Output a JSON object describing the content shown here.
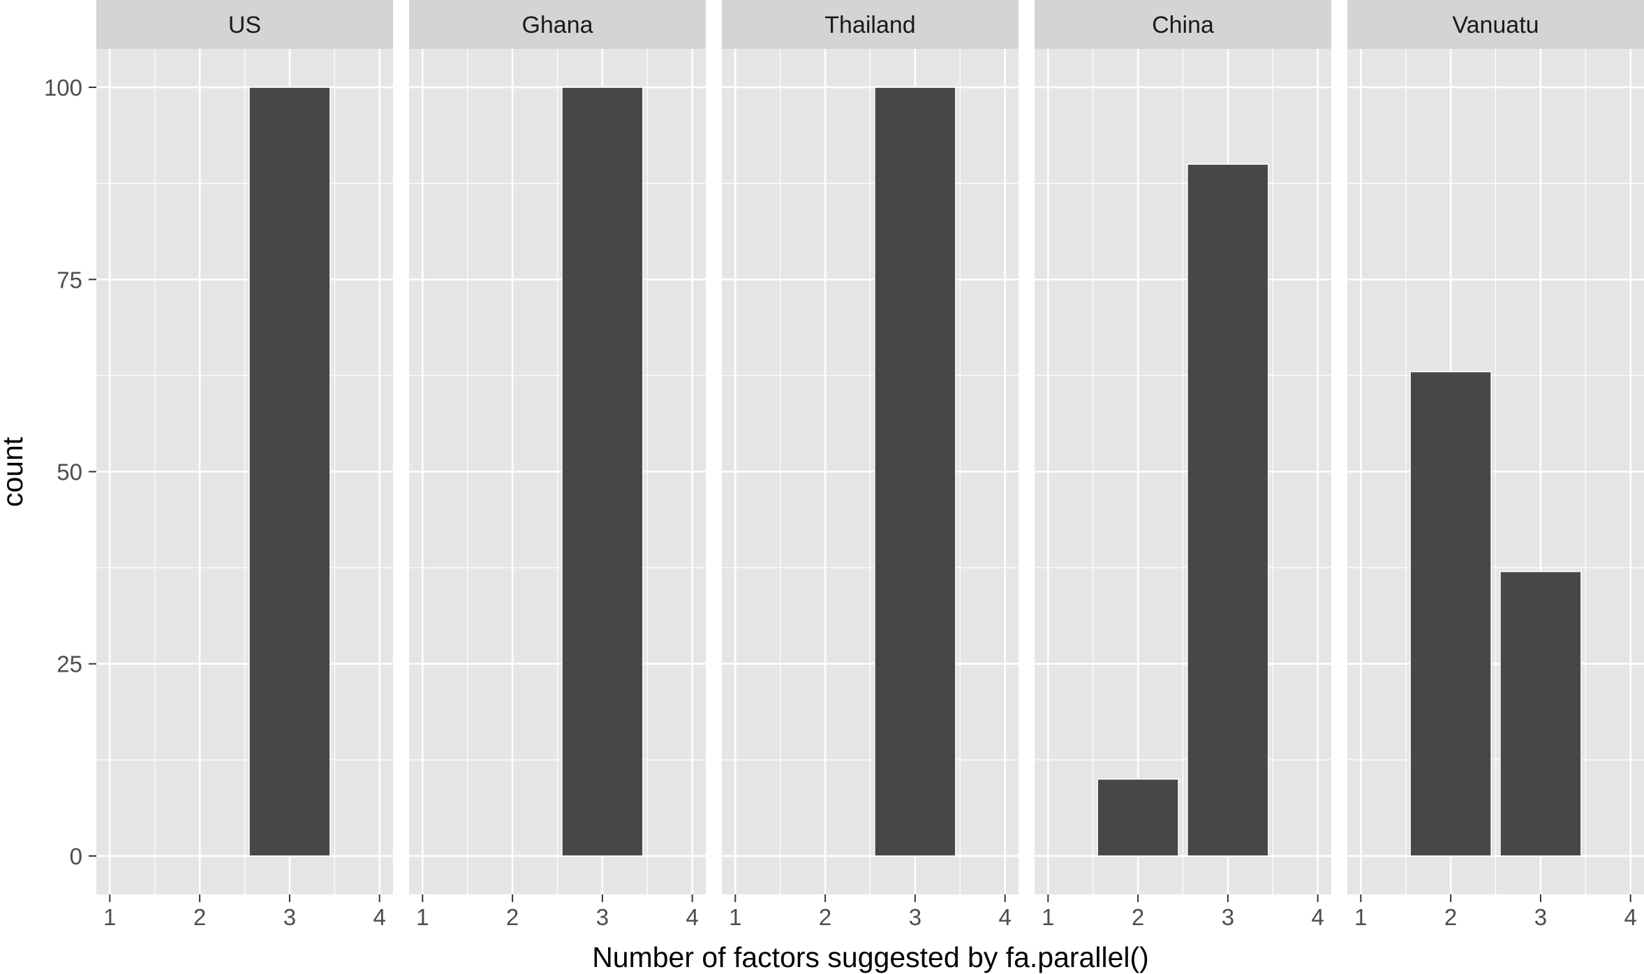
{
  "chart_data": {
    "type": "bar",
    "xlabel": "Number of factors suggested by fa.parallel()",
    "ylabel": "count",
    "x_ticks": [
      "1",
      "2",
      "3",
      "4"
    ],
    "y_ticks": [
      "0",
      "25",
      "50",
      "75",
      "100"
    ],
    "xlim": [
      0.85,
      4.15
    ],
    "ylim": [
      -5,
      105
    ],
    "grid": true,
    "bar_color": "#474747",
    "panel_background": "#e5e5e5",
    "strip_background": "#d4d4d4",
    "grid_color": "#ffffff",
    "facets": [
      {
        "label": "US",
        "bars": [
          {
            "x": 3,
            "count": 100
          }
        ]
      },
      {
        "label": "Ghana",
        "bars": [
          {
            "x": 3,
            "count": 100
          }
        ]
      },
      {
        "label": "Thailand",
        "bars": [
          {
            "x": 3,
            "count": 100
          }
        ]
      },
      {
        "label": "China",
        "bars": [
          {
            "x": 2,
            "count": 10
          },
          {
            "x": 3,
            "count": 90
          }
        ]
      },
      {
        "label": "Vanuatu",
        "bars": [
          {
            "x": 2,
            "count": 63
          },
          {
            "x": 3,
            "count": 37
          }
        ]
      }
    ]
  }
}
